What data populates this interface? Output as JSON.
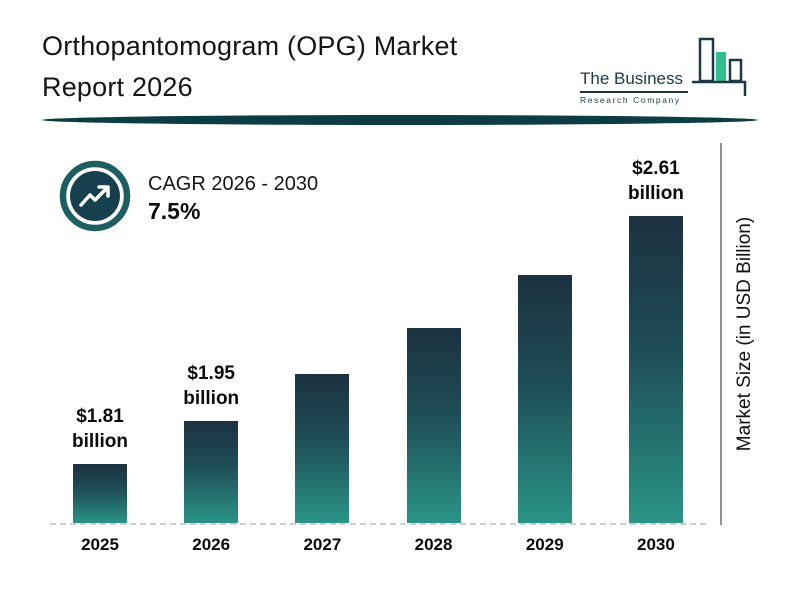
{
  "header": {
    "title_line1": "Orthopantomogram (OPG) Market",
    "title_line2": "Report 2026",
    "logo": {
      "line1": "The Business",
      "line2": "Research Company"
    }
  },
  "cagr": {
    "label": "CAGR 2026 - 2030",
    "value": "7.5%"
  },
  "axis": {
    "y_label": "Market Size (in USD Billion)"
  },
  "chart_data": {
    "type": "bar",
    "title": "Orthopantomogram (OPG) Market Report 2026",
    "categories": [
      "2025",
      "2026",
      "2027",
      "2028",
      "2029",
      "2030"
    ],
    "values": [
      1.81,
      1.95,
      2.1,
      2.25,
      2.42,
      2.61
    ],
    "bar_labels": [
      {
        "amount": "$1.81",
        "unit": "billion"
      },
      {
        "amount": "$1.95",
        "unit": "billion"
      },
      null,
      null,
      null,
      {
        "amount": "$2.61",
        "unit": "billion"
      }
    ],
    "xlabel": "",
    "ylabel": "Market Size (in USD Billion)",
    "ylim": [
      1.6,
      2.7
    ],
    "grid": false,
    "legend": false,
    "colors": {
      "bar_top": "#1c3140",
      "bar_bottom": "#2a9486",
      "accent_green": "#2fbf8f",
      "dark_teal": "#0d3d43",
      "baseline_dash": "#c9cfcf"
    }
  }
}
